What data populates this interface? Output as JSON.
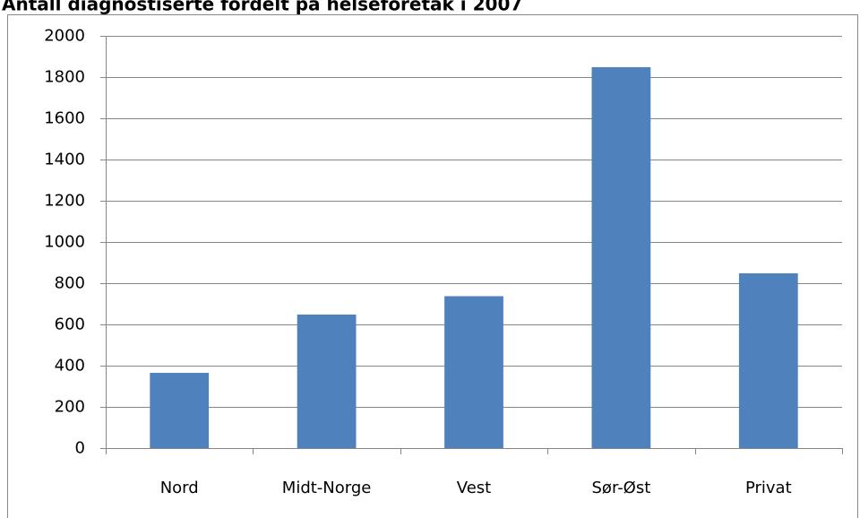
{
  "chart_data": {
    "type": "bar",
    "title": "Antall diagnostiserte fordelt på helseforetak i 2007",
    "categories": [
      "Nord",
      "Midt-Norge",
      "Vest",
      "Sør-Øst",
      "Privat"
    ],
    "values": [
      365,
      648,
      737,
      1848,
      848
    ],
    "color": "#4f81bd",
    "ylim": [
      0,
      2000
    ],
    "yticks": [
      0,
      200,
      400,
      600,
      800,
      1000,
      1200,
      1400,
      1600,
      1800,
      2000
    ],
    "grid": true
  }
}
